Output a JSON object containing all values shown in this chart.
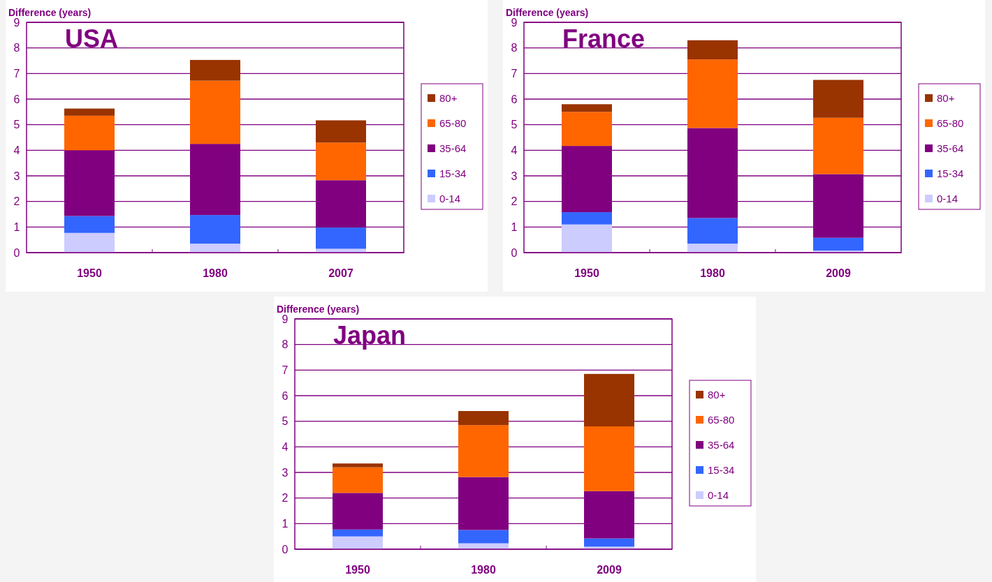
{
  "chart_data": [
    {
      "type": "bar",
      "title": "USA",
      "ylabel": "Difference (years)",
      "categories": [
        "1950",
        "1980",
        "2007"
      ],
      "stacked": true,
      "ylim": [
        0,
        9
      ],
      "yticks": [
        0,
        1,
        2,
        3,
        4,
        5,
        6,
        7,
        8,
        9
      ],
      "grid": "y",
      "legend": "right",
      "series": [
        {
          "name": "0-14",
          "color": "#ccccff",
          "values": [
            0.77,
            0.35,
            0.15
          ]
        },
        {
          "name": "15-34",
          "color": "#3366ff",
          "values": [
            0.66,
            1.12,
            0.83
          ]
        },
        {
          "name": "35-64",
          "color": "#800080",
          "values": [
            2.57,
            2.78,
            1.85
          ]
        },
        {
          "name": "65-80",
          "color": "#ff6600",
          "values": [
            1.35,
            2.47,
            1.47
          ]
        },
        {
          "name": "80+",
          "color": "#993300",
          "values": [
            0.28,
            0.81,
            0.87
          ]
        }
      ]
    },
    {
      "type": "bar",
      "title": "France",
      "ylabel": "Difference (years)",
      "categories": [
        "1950",
        "1980",
        "2009"
      ],
      "stacked": true,
      "ylim": [
        0,
        9
      ],
      "yticks": [
        0,
        1,
        2,
        3,
        4,
        5,
        6,
        7,
        8,
        9
      ],
      "grid": "y",
      "legend": "right",
      "series": [
        {
          "name": "0-14",
          "color": "#ccccff",
          "values": [
            1.1,
            0.35,
            0.08
          ]
        },
        {
          "name": "15-34",
          "color": "#3366ff",
          "values": [
            0.48,
            1.0,
            0.5
          ]
        },
        {
          "name": "35-64",
          "color": "#800080",
          "values": [
            2.59,
            3.52,
            2.49
          ]
        },
        {
          "name": "65-80",
          "color": "#ff6600",
          "values": [
            1.33,
            2.68,
            2.2
          ]
        },
        {
          "name": "80+",
          "color": "#993300",
          "values": [
            0.3,
            0.75,
            1.48
          ]
        }
      ]
    },
    {
      "type": "bar",
      "title": "Japan",
      "ylabel": "Difference (years)",
      "categories": [
        "1950",
        "1980",
        "2009"
      ],
      "stacked": true,
      "ylim": [
        0,
        9
      ],
      "yticks": [
        0,
        1,
        2,
        3,
        4,
        5,
        6,
        7,
        8,
        9
      ],
      "grid": "y",
      "legend": "right",
      "series": [
        {
          "name": "0-14",
          "color": "#ccccff",
          "values": [
            0.5,
            0.23,
            0.1
          ]
        },
        {
          "name": "15-34",
          "color": "#3366ff",
          "values": [
            0.27,
            0.52,
            0.32
          ]
        },
        {
          "name": "35-64",
          "color": "#800080",
          "values": [
            1.43,
            2.07,
            1.85
          ]
        },
        {
          "name": "65-80",
          "color": "#ff6600",
          "values": [
            1.0,
            2.03,
            2.53
          ]
        },
        {
          "name": "80+",
          "color": "#993300",
          "values": [
            0.15,
            0.55,
            2.05
          ]
        }
      ]
    }
  ]
}
